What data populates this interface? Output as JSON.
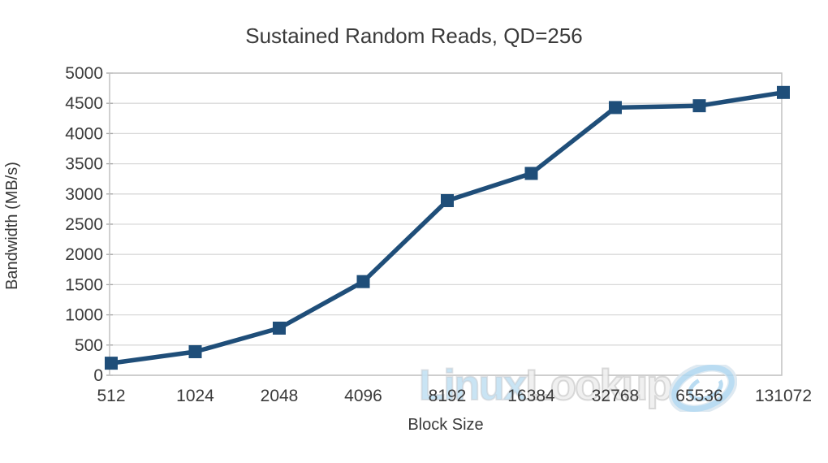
{
  "watermark": {
    "part1": "Linux",
    "part2": "Lookup",
    "logo_icon": "swirl-at-logo",
    "blue": "#c5e2f4",
    "gray": "#efefef"
  },
  "chart_data": {
    "type": "line",
    "title": "Sustained Random Reads, QD=256",
    "xlabel": "Block Size",
    "ylabel": "Bandwidth (MB/s)",
    "categories": [
      "512",
      "1024",
      "2048",
      "4096",
      "8192",
      "16384",
      "32768",
      "65536",
      "131072"
    ],
    "series": [
      {
        "name": "Bandwidth (MB/s)",
        "values": [
          200,
          390,
          780,
          1550,
          2890,
          3340,
          4430,
          4460,
          4680
        ]
      }
    ],
    "ylim": [
      0,
      5000
    ],
    "ytick_step": 500,
    "grid": "horizontal-only",
    "legend": "none",
    "marker": "square",
    "colors": {
      "line": "#1F4E79",
      "marker": "#1F4E79",
      "gridline": "#D9D9D9",
      "plot_border": "#C0C0C0",
      "axis_tick": "#A6A6A6",
      "text": "#3A3A3A"
    }
  }
}
